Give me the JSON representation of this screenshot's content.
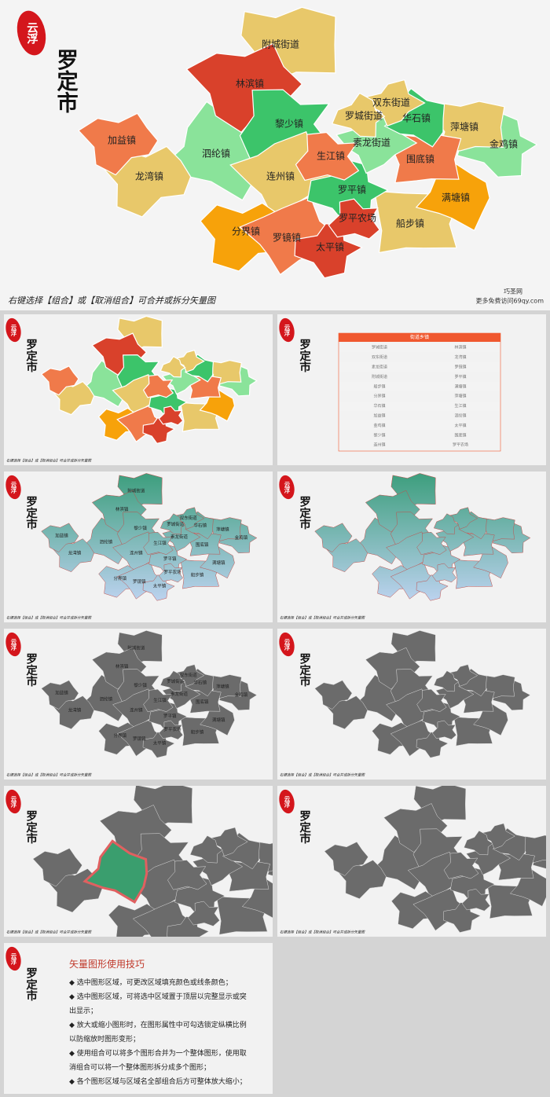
{
  "seal": "云浮",
  "city": "罗定市",
  "footer": "右键选择【组合】或【取消组合】可合并或拆分矢量图",
  "watermark": "巧圣网",
  "website": "更多免费访问69qy.com",
  "regions": [
    {
      "name": "附城街道",
      "color": "#e8c86a"
    },
    {
      "name": "林滨镇",
      "color": "#d9412b"
    },
    {
      "name": "双东街道",
      "color": "#e8c86a"
    },
    {
      "name": "罗城街道",
      "color": "#e8c86a"
    },
    {
      "name": "华石镇",
      "color": "#3cc46a"
    },
    {
      "name": "黎少镇",
      "color": "#3cc46a"
    },
    {
      "name": "萍塘镇",
      "color": "#e8c86a"
    },
    {
      "name": "加益镇",
      "color": "#f07a4a"
    },
    {
      "name": "素龙街道",
      "color": "#8ae39a"
    },
    {
      "name": "金鸡镇",
      "color": "#8ae39a"
    },
    {
      "name": "泗纶镇",
      "color": "#8ae39a"
    },
    {
      "name": "生江镇",
      "color": "#f07a4a"
    },
    {
      "name": "围底镇",
      "color": "#f07a4a"
    },
    {
      "name": "龙湾镇",
      "color": "#e8c86a"
    },
    {
      "name": "连州镇",
      "color": "#e8c86a"
    },
    {
      "name": "罗平镇",
      "color": "#3cc46a"
    },
    {
      "name": "满塘镇",
      "color": "#f7a20a"
    },
    {
      "name": "罗平农场",
      "color": "#d9412b"
    },
    {
      "name": "船步镇",
      "color": "#e8c86a"
    },
    {
      "name": "分界镇",
      "color": "#f7a20a"
    },
    {
      "name": "罗镜镇",
      "color": "#f07a4a"
    },
    {
      "name": "太平镇",
      "color": "#d9412b"
    }
  ],
  "table": {
    "title": "街道乡镇",
    "rows": [
      [
        "罗城街道",
        "林滨镇"
      ],
      [
        "双东街道",
        "龙湾镇"
      ],
      [
        "素龙街道",
        "罗镜镇"
      ],
      [
        "附城街道",
        "罗平镇"
      ],
      [
        "船步镇",
        "满塘镇"
      ],
      [
        "分界镇",
        "萍塘镇"
      ],
      [
        "华石镇",
        "生江镇"
      ],
      [
        "加益镇",
        "泗纶镇"
      ],
      [
        "金鸡镇",
        "太平镇"
      ],
      [
        "黎少镇",
        "围底镇"
      ],
      [
        "连州镇",
        "罗平农场"
      ]
    ]
  },
  "tips": {
    "title": "矢量图形使用技巧",
    "items": [
      "选中图形区域，可更改区域填充颜色或线条颜色；",
      "选中图形区域，可将选中区域置于顶层以完整显示或突出显示；",
      "放大或缩小图形时，在图形属性中可勾选锁定纵横比例以防缩放时图形变形；",
      "使用组合可以将多个图形合并为一个整体图形，使用取消组合可以将一个整体图形拆分成多个图形；",
      "各个图形区域与区域名全部组合后方可整体放大缩小；"
    ]
  }
}
